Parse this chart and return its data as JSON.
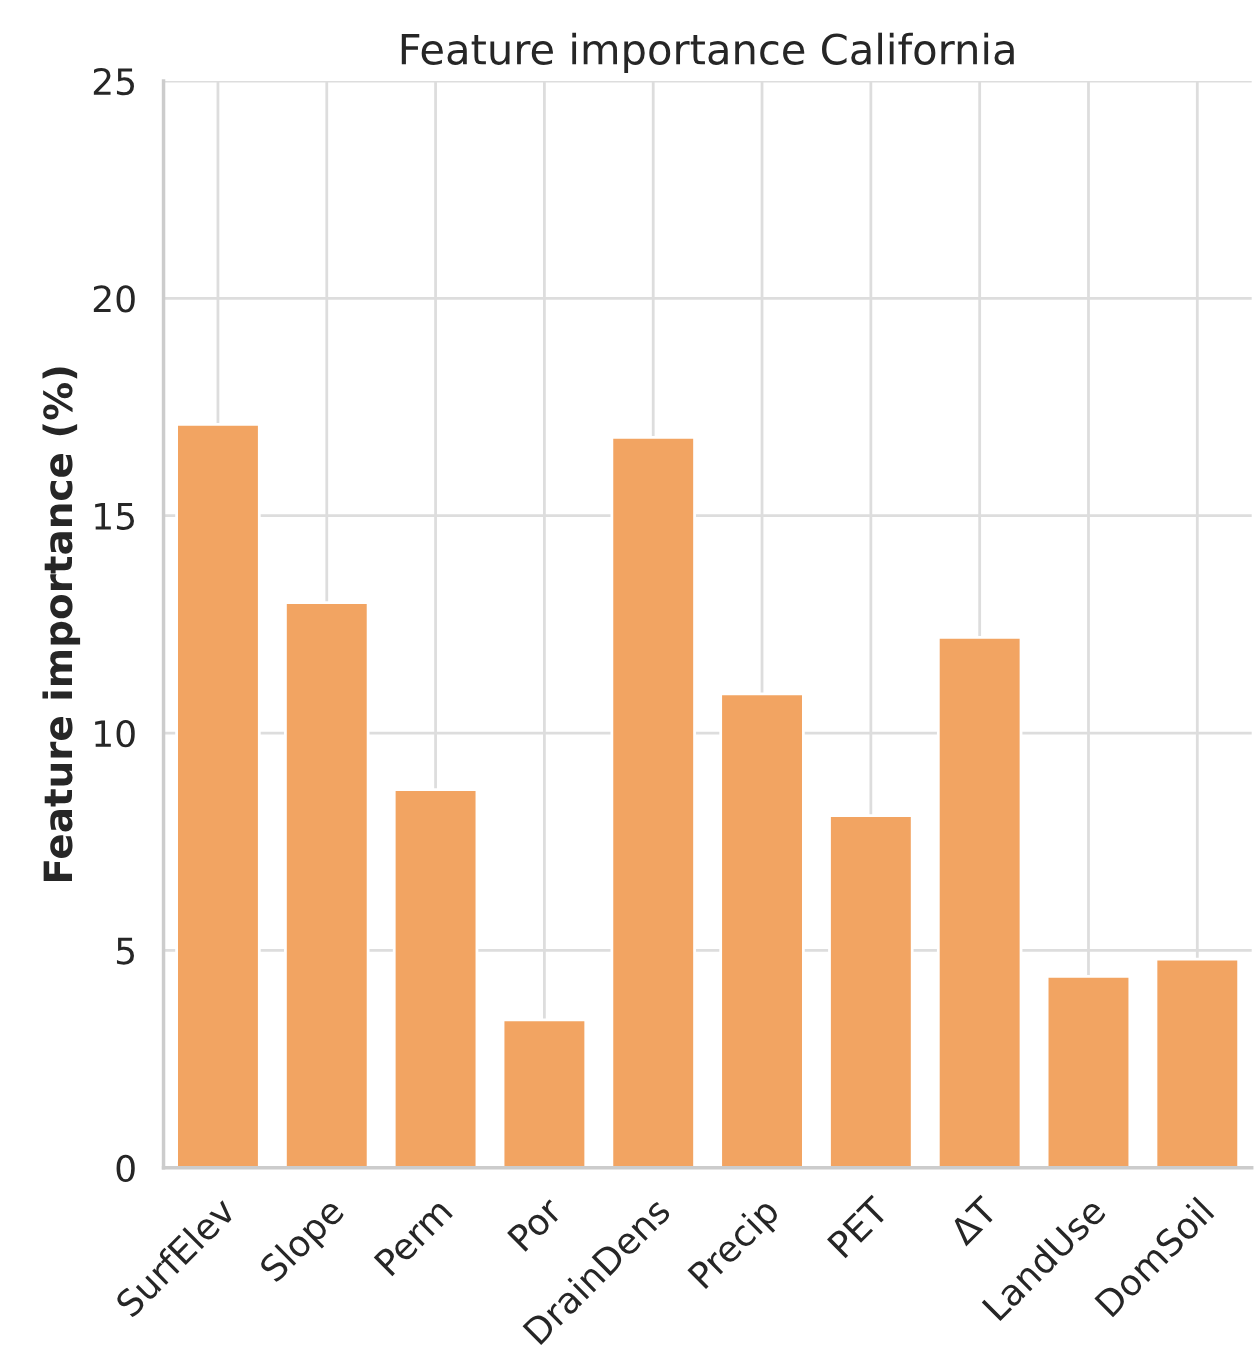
{
  "chart_data": {
    "type": "bar",
    "title": "Feature importance California",
    "ylabel": "Feature importance (%)",
    "categories": [
      "SurfElev",
      "Slope",
      "Perm",
      "Por",
      "DrainDens",
      "Precip",
      "PET",
      "ΔT",
      "LandUse",
      "DomSoil"
    ],
    "values": [
      17.1,
      13.0,
      8.7,
      3.4,
      16.8,
      10.9,
      8.1,
      12.2,
      4.4,
      4.8
    ],
    "color": "#f2a462",
    "ylim": [
      0,
      25
    ],
    "yticks": [
      0,
      5,
      10,
      15,
      20,
      25
    ],
    "grid": true
  }
}
